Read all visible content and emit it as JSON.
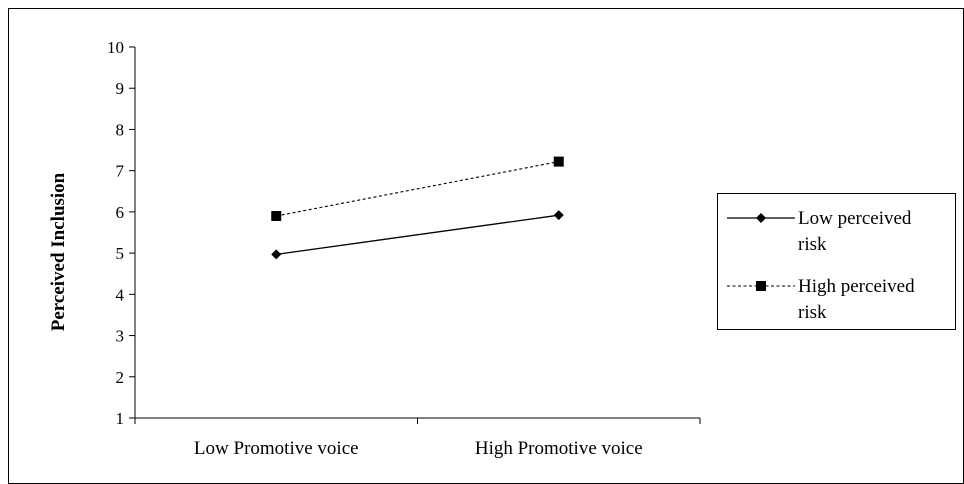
{
  "chart_data": {
    "type": "line",
    "categories": [
      "Low Promotive voice",
      "High Promotive voice"
    ],
    "series": [
      {
        "name": "Low perceived risk",
        "values": [
          4.97,
          5.92
        ],
        "marker": "diamond",
        "line_style": "solid"
      },
      {
        "name": "High perceived risk",
        "values": [
          5.9,
          7.22
        ],
        "marker": "square",
        "line_style": "dashed"
      }
    ],
    "ylabel": "Perceived Inclusion",
    "xlabel": "",
    "ylim": [
      1,
      10
    ],
    "yticks": [
      1,
      2,
      3,
      4,
      5,
      6,
      7,
      8,
      9,
      10
    ],
    "grid": false,
    "legend": {
      "placement": "right",
      "entries": [
        {
          "line1": "Low perceived",
          "line2": "risk"
        },
        {
          "line1": "High perceived",
          "line2": "risk"
        }
      ]
    },
    "colors": {
      "line": "#000000",
      "background": "#ffffff"
    }
  }
}
